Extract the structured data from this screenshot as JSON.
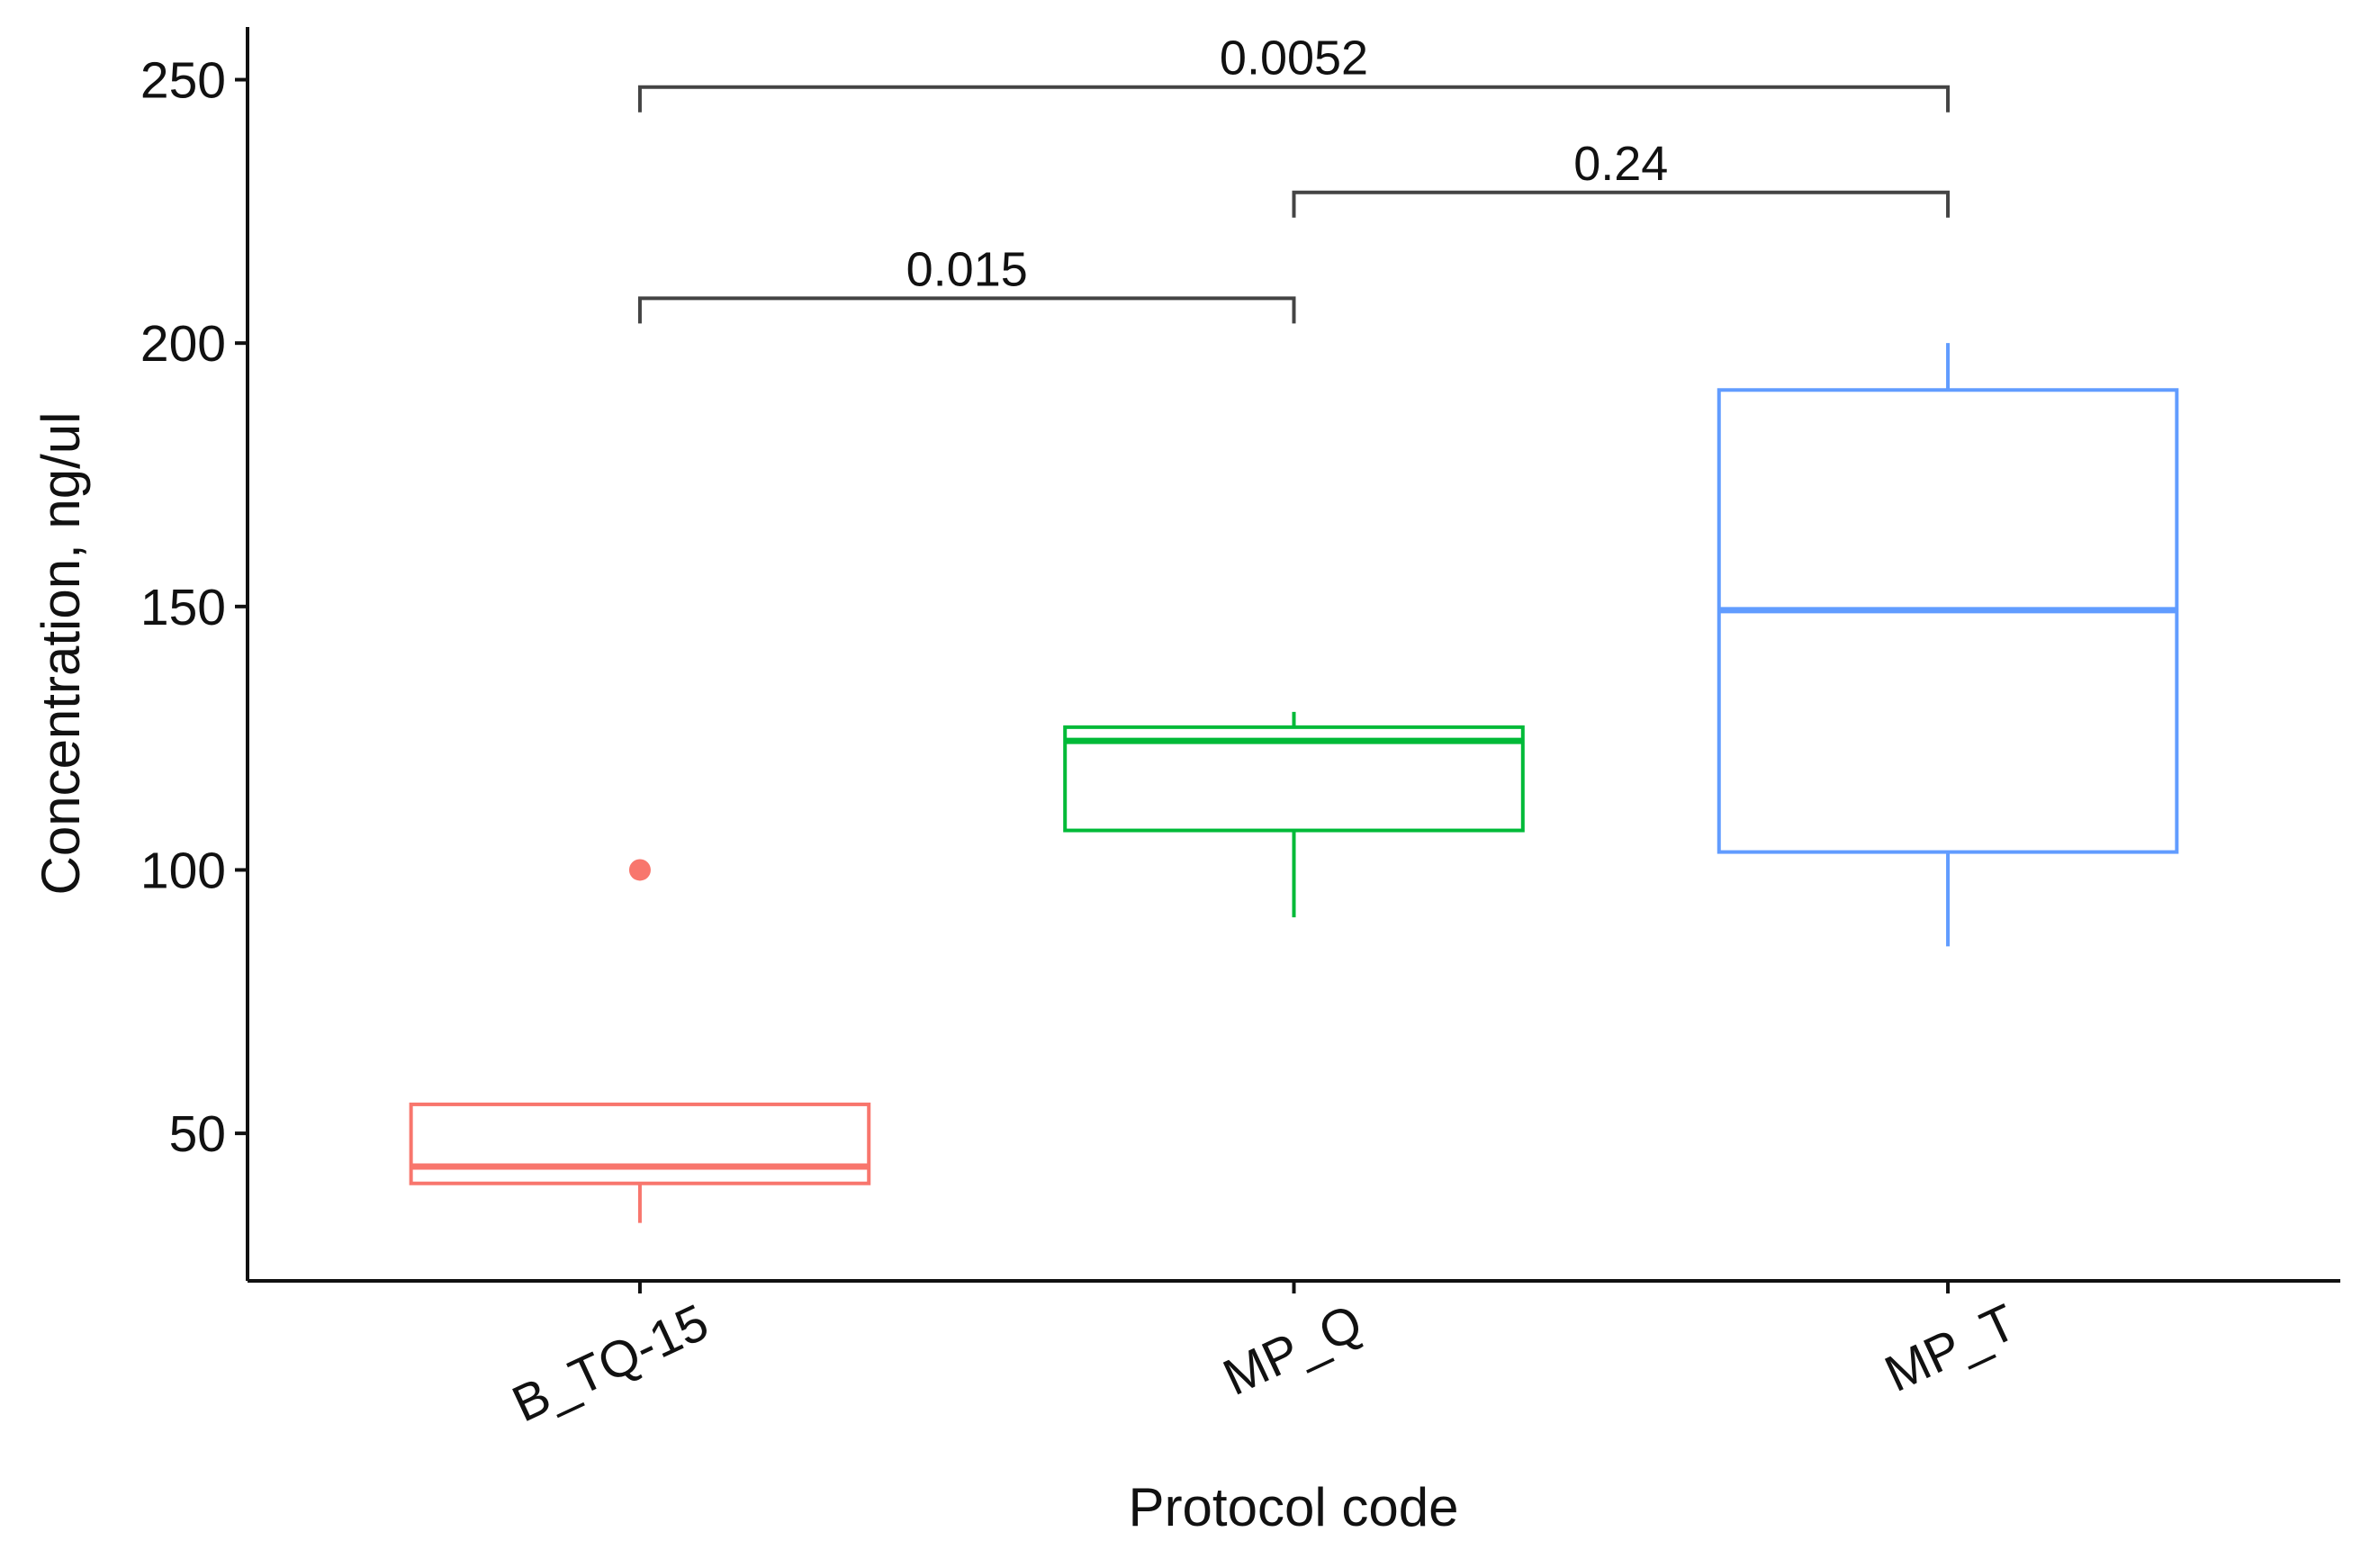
{
  "chart_data": {
    "type": "box",
    "x_label": "Protocol code",
    "y_label": "Concentration, ng/ul",
    "categories": [
      "B_TQ-15",
      "MP_Q",
      "MP_T"
    ],
    "series": [
      {
        "name": "B_TQ-15",
        "color": "#F8766D",
        "min": 33,
        "q1": 40.5,
        "median": 43.7,
        "q3": 55.5,
        "max": 55.5,
        "outliers": [
          100
        ]
      },
      {
        "name": "MP_Q",
        "color": "#00BA38",
        "min": 91,
        "q1": 107.5,
        "median": 124.5,
        "q3": 127.1,
        "max": 130,
        "outliers": []
      },
      {
        "name": "MP_T",
        "color": "#619CFF",
        "min": 85.5,
        "q1": 103.4,
        "median": 149.3,
        "q3": 191.1,
        "max": 200,
        "outliers": []
      }
    ],
    "annotations": [
      {
        "label": "0.015",
        "groups": [
          "B_TQ-15",
          "MP_Q"
        ],
        "y": 208.5
      },
      {
        "label": "0.24",
        "groups": [
          "MP_Q",
          "MP_T"
        ],
        "y": 228.6
      },
      {
        "label": "0.0052",
        "groups": [
          "B_TQ-15",
          "MP_T"
        ],
        "y": 248.6
      }
    ],
    "ylim": [
      22,
      260
    ],
    "yticks": [
      50,
      100,
      150,
      200,
      250
    ]
  }
}
